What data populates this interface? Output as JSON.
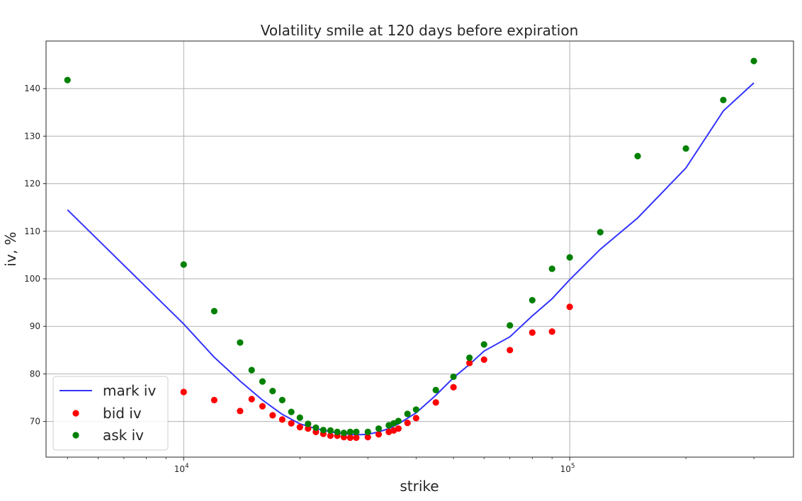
{
  "chart_data": {
    "type": "scatter",
    "title": "Volatility smile at 120 days before expiration",
    "xlabel": "strike",
    "ylabel": "iv, %",
    "xscale": "log",
    "xlim": [
      4400,
      380000
    ],
    "ylim": [
      62.5,
      150
    ],
    "x_ticks": [
      {
        "value": 10000,
        "base": "10",
        "exp": "4"
      },
      {
        "value": 100000,
        "base": "10",
        "exp": "5"
      }
    ],
    "y_ticks": [
      70,
      80,
      90,
      100,
      110,
      120,
      130,
      140
    ],
    "grid": true,
    "legend_position": "lower-left",
    "series": [
      {
        "name": "mark iv",
        "kind": "line",
        "color": "#3333ff",
        "points": [
          [
            5000,
            114.5
          ],
          [
            10000,
            90.5
          ],
          [
            12000,
            83.5
          ],
          [
            14000,
            78.5
          ],
          [
            16000,
            74.5
          ],
          [
            18000,
            71.5
          ],
          [
            20000,
            69.5
          ],
          [
            22000,
            68.5
          ],
          [
            24000,
            67.8
          ],
          [
            26000,
            67.4
          ],
          [
            28000,
            67.2
          ],
          [
            30000,
            67.3
          ],
          [
            32000,
            67.8
          ],
          [
            34000,
            68.5
          ],
          [
            36000,
            69.5
          ],
          [
            40000,
            71.8
          ],
          [
            45000,
            75.5
          ],
          [
            50000,
            79.2
          ],
          [
            55000,
            82.0
          ],
          [
            60000,
            84.8
          ],
          [
            70000,
            87.8
          ],
          [
            80000,
            92.2
          ],
          [
            90000,
            95.8
          ],
          [
            100000,
            99.8
          ],
          [
            120000,
            106.2
          ],
          [
            150000,
            112.8
          ],
          [
            200000,
            123.3
          ],
          [
            250000,
            135.3
          ],
          [
            300000,
            141.2
          ]
        ]
      },
      {
        "name": "bid iv",
        "kind": "scatter",
        "color": "#ff0000",
        "points": [
          [
            10000,
            76.2
          ],
          [
            12000,
            74.5
          ],
          [
            14000,
            72.2
          ],
          [
            15000,
            74.7
          ],
          [
            16000,
            73.2
          ],
          [
            17000,
            71.3
          ],
          [
            18000,
            70.4
          ],
          [
            19000,
            69.6
          ],
          [
            20000,
            68.8
          ],
          [
            21000,
            68.5
          ],
          [
            22000,
            67.8
          ],
          [
            23000,
            67.4
          ],
          [
            24000,
            67.0
          ],
          [
            25000,
            67.0
          ],
          [
            26000,
            66.7
          ],
          [
            27000,
            66.6
          ],
          [
            28000,
            66.6
          ],
          [
            30000,
            66.7
          ],
          [
            32000,
            67.3
          ],
          [
            34000,
            67.8
          ],
          [
            35000,
            68.1
          ],
          [
            36000,
            68.5
          ],
          [
            38000,
            69.7
          ],
          [
            40000,
            70.7
          ],
          [
            45000,
            74.0
          ],
          [
            50000,
            77.2
          ],
          [
            55000,
            82.3
          ],
          [
            60000,
            83.0
          ],
          [
            70000,
            85.0
          ],
          [
            80000,
            88.7
          ],
          [
            90000,
            88.9
          ],
          [
            100000,
            94.1
          ]
        ]
      },
      {
        "name": "ask iv",
        "kind": "scatter",
        "color": "#008000",
        "points": [
          [
            5000,
            141.8
          ],
          [
            10000,
            103.0
          ],
          [
            12000,
            93.2
          ],
          [
            14000,
            86.6
          ],
          [
            15000,
            80.8
          ],
          [
            16000,
            78.4
          ],
          [
            17000,
            76.4
          ],
          [
            18000,
            74.5
          ],
          [
            19000,
            72.0
          ],
          [
            20000,
            70.8
          ],
          [
            21000,
            69.5
          ],
          [
            22000,
            68.7
          ],
          [
            23000,
            68.2
          ],
          [
            24000,
            68.1
          ],
          [
            25000,
            67.8
          ],
          [
            26000,
            67.6
          ],
          [
            27000,
            67.8
          ],
          [
            28000,
            67.8
          ],
          [
            30000,
            67.8
          ],
          [
            32000,
            68.5
          ],
          [
            34000,
            69.2
          ],
          [
            35000,
            69.6
          ],
          [
            36000,
            70.1
          ],
          [
            38000,
            71.6
          ],
          [
            40000,
            72.5
          ],
          [
            45000,
            76.6
          ],
          [
            50000,
            79.4
          ],
          [
            55000,
            83.4
          ],
          [
            60000,
            86.2
          ],
          [
            70000,
            90.2
          ],
          [
            80000,
            95.5
          ],
          [
            90000,
            102.1
          ],
          [
            100000,
            104.5
          ],
          [
            120000,
            109.8
          ],
          [
            150000,
            125.8
          ],
          [
            200000,
            127.4
          ],
          [
            250000,
            137.6
          ],
          [
            300000,
            145.8
          ]
        ]
      }
    ]
  }
}
